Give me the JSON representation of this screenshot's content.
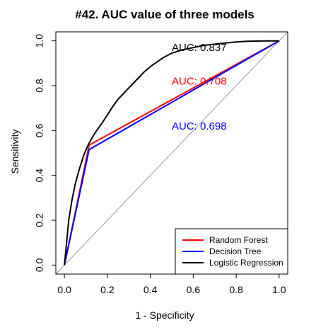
{
  "chart_data": {
    "type": "line",
    "title": "#42. AUC value of three models",
    "xlabel": "1 - Specificity",
    "ylabel": "Sensitivity",
    "xlim": [
      -0.04,
      1.04
    ],
    "ylim": [
      -0.04,
      1.04
    ],
    "xticks": [
      0.0,
      0.2,
      0.4,
      0.6,
      0.8,
      1.0
    ],
    "yticks": [
      0.0,
      0.2,
      0.4,
      0.6,
      0.8,
      1.0
    ],
    "xtick_labels": [
      "0.0",
      "0.2",
      "0.4",
      "0.6",
      "0.8",
      "1.0"
    ],
    "ytick_labels": [
      "0.0",
      "0.2",
      "0.4",
      "0.6",
      "0.8",
      "1.0"
    ],
    "grid": false,
    "legend_position": "bottom-right",
    "diagonal_reference": true,
    "series": [
      {
        "name": "Random Forest",
        "color": "#ff0000",
        "x": [
          0.0,
          0.115,
          1.0
        ],
        "y": [
          0.0,
          0.535,
          1.0
        ]
      },
      {
        "name": "Decision Tree",
        "color": "#0000ff",
        "x": [
          0.0,
          0.115,
          1.0
        ],
        "y": [
          0.0,
          0.515,
          1.0
        ]
      },
      {
        "name": "Logistic Regression",
        "color": "#000000",
        "x": [
          0.0,
          0.01,
          0.02,
          0.035,
          0.05,
          0.07,
          0.09,
          0.11,
          0.13,
          0.15,
          0.18,
          0.2,
          0.22,
          0.25,
          0.28,
          0.31,
          0.34,
          0.37,
          0.4,
          0.43,
          0.46,
          0.5,
          0.55,
          0.6,
          0.65,
          0.7,
          0.75,
          0.8,
          0.85,
          0.9,
          0.95,
          1.0
        ],
        "y": [
          0.0,
          0.1,
          0.2,
          0.29,
          0.36,
          0.43,
          0.49,
          0.535,
          0.57,
          0.6,
          0.64,
          0.67,
          0.7,
          0.74,
          0.77,
          0.8,
          0.83,
          0.86,
          0.885,
          0.905,
          0.925,
          0.945,
          0.96,
          0.97,
          0.98,
          0.985,
          0.99,
          0.995,
          0.998,
          0.999,
          1.0,
          1.0
        ]
      }
    ],
    "annotations": [
      {
        "text": "AUC: 0.837",
        "x": 0.5,
        "y": 0.97,
        "color": "#000000"
      },
      {
        "text": "AUC: 0.708",
        "x": 0.5,
        "y": 0.82,
        "color": "#ff0000"
      },
      {
        "text": "AUC: 0.698",
        "x": 0.5,
        "y": 0.62,
        "color": "#0000ff"
      }
    ]
  }
}
